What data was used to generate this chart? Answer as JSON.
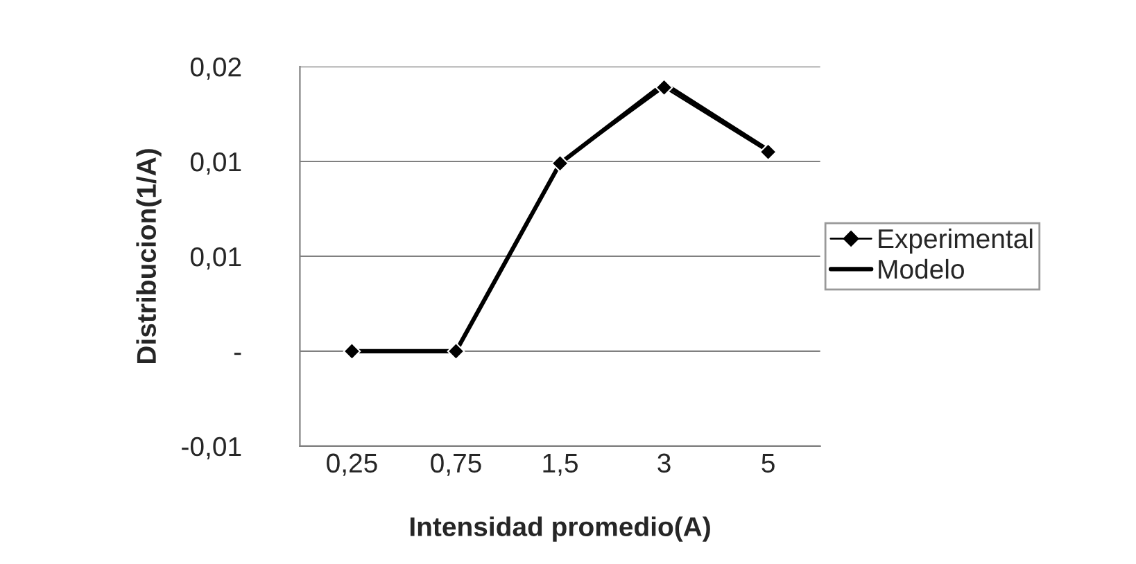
{
  "chart_data": {
    "type": "line",
    "xlabel": "Intensidad promedio(A)",
    "ylabel": "Distribucion(1/A)",
    "categories": [
      "0,25",
      "0,75",
      "1,5",
      "3",
      "5"
    ],
    "series": [
      {
        "name": "Experimental",
        "color": "#000000",
        "values": [
          0,
          0,
          0.0099,
          0.0139,
          0.0105
        ],
        "marker": "diamond"
      },
      {
        "name": "Modelo",
        "color": "#000000",
        "values": [
          0,
          0,
          0.0099,
          0.0141,
          0.0106
        ],
        "marker": "none"
      }
    ],
    "ylim": [
      -0.005,
      0.015
    ],
    "yticks": [
      {
        "value": -0.005,
        "label": "-0,01"
      },
      {
        "value": 0,
        "label": "-"
      },
      {
        "value": 0.005,
        "label": "0,01"
      },
      {
        "value": 0.01,
        "label": "0,01"
      },
      {
        "value": 0.015,
        "label": "0,02"
      }
    ],
    "grid": "y",
    "legend": "right"
  }
}
